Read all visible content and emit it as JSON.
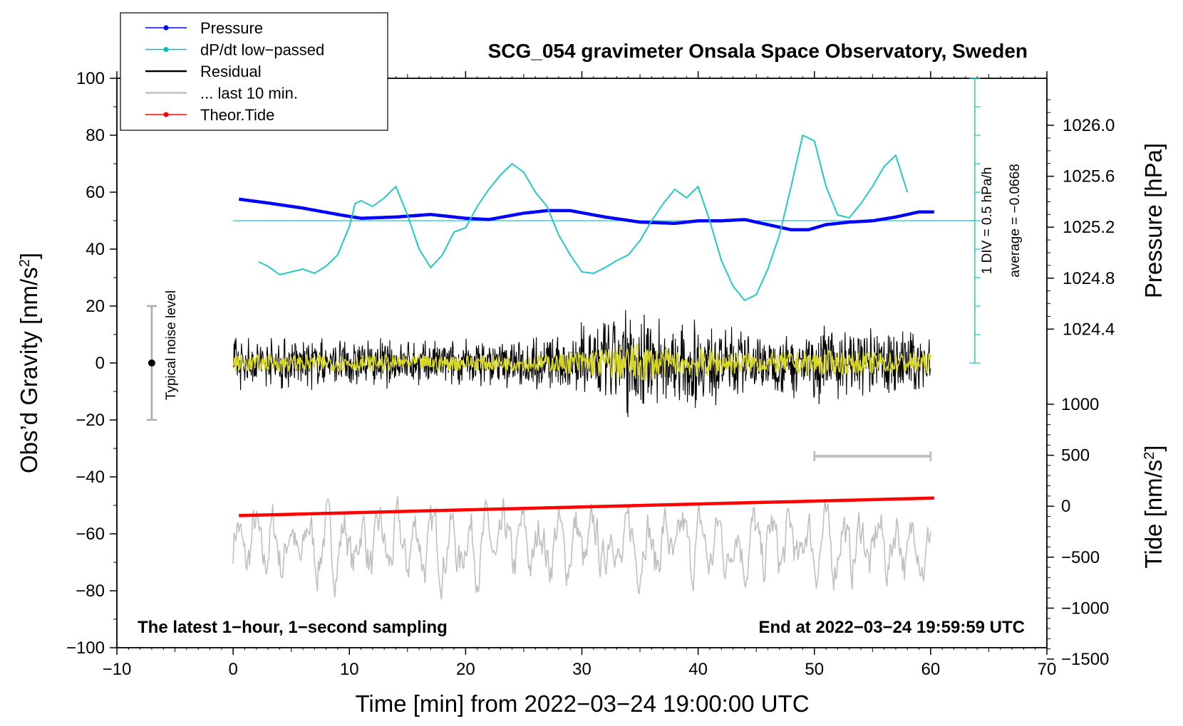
{
  "chart_data": {
    "type": "line",
    "title": "SCG_054 gravimeter Onsala Space Observatory, Sweden",
    "xlabel": "Time [min] from 2022−03−24 19:00:00 UTC",
    "ylabel_left_main": "Obs’d Gravity [nm/s",
    "ylabel_left_sup": "2",
    "ylabel_left_end": "]",
    "ylabel_right_pressure": "Pressure [hPa]",
    "ylabel_right_tide_main": "Tide [nm/s",
    "ylabel_right_tide_sup": "2",
    "ylabel_right_tide_end": "]",
    "xlim": [
      -10,
      70
    ],
    "ylim": [
      -100,
      100
    ],
    "x_ticks": [
      "−10",
      "0",
      "10",
      "20",
      "30",
      "40",
      "50",
      "60",
      "70"
    ],
    "y_ticks": [
      "−100",
      "−80",
      "−60",
      "−40",
      "−20",
      "0",
      "20",
      "40",
      "60",
      "80",
      "100"
    ],
    "pressure_ticks": [
      "1024.4",
      "1024.8",
      "1025.2",
      "1025.6",
      "1026.0"
    ],
    "tide_ticks": [
      "−1500",
      "−1000",
      "−500",
      "0",
      "500",
      "1000"
    ],
    "legend": [
      {
        "label": "Pressure",
        "color": "#0000ff",
        "marker": true
      },
      {
        "label": "dP/dt low−passed",
        "color": "#00c0c0",
        "marker": true
      },
      {
        "label": "Residual",
        "color": "#000000",
        "marker": false
      },
      {
        "label": "... last 10 min.",
        "color": "#bfbfbf",
        "marker": false
      },
      {
        "label": "Theor.Tide",
        "color": "#ff0000",
        "marker": true
      }
    ],
    "colors": {
      "pressure": "#0000ff",
      "dpdt": "#22c8c8",
      "residual": "#000000",
      "residual_smooth": "#d8d820",
      "last10": "#c0c0c0",
      "tide": "#ff0000",
      "noise_bar": "#aaaaaa"
    },
    "footer_left": "The latest 1−hour, 1−second sampling",
    "footer_right": "End at 2022−03−24 19:59:59 UTC",
    "noise_label": "Typical noise level",
    "noise_bar": {
      "x": -7,
      "ymin": -20,
      "ymax": 20,
      "center": 0
    },
    "last10_span_min": [
      50,
      60
    ],
    "dpdt_annotation_1": "1 DIV = 0.5 hPa/h",
    "dpdt_annotation_2": "average = −0.0668",
    "dpdt_zero_level_gravity": 50,
    "pressure_series": {
      "x": [
        0.5,
        3,
        6,
        9,
        11,
        14,
        17,
        20,
        22,
        25,
        27,
        29,
        32,
        35,
        38,
        40,
        42,
        44,
        46,
        48,
        49.5,
        51,
        53,
        55,
        57,
        59,
        60.3
      ],
      "y": [
        1025.42,
        1025.39,
        1025.35,
        1025.3,
        1025.27,
        1025.28,
        1025.3,
        1025.27,
        1025.26,
        1025.31,
        1025.33,
        1025.33,
        1025.28,
        1025.24,
        1025.23,
        1025.25,
        1025.25,
        1025.26,
        1025.22,
        1025.18,
        1025.18,
        1025.22,
        1025.24,
        1025.25,
        1025.28,
        1025.32,
        1025.32
      ]
    },
    "dpdt_series": {
      "x": [
        2.2,
        3,
        4,
        5,
        6,
        7,
        8,
        9,
        10,
        10.5,
        11,
        12,
        13,
        14,
        15,
        16,
        17,
        18,
        19,
        20,
        21,
        22,
        23,
        24,
        25,
        26,
        27,
        28,
        29,
        30,
        31,
        32,
        33,
        34,
        35,
        36,
        37,
        38,
        39,
        40,
        41,
        42,
        43,
        44,
        45,
        46,
        47,
        48,
        49,
        50,
        51,
        52,
        53,
        54,
        55,
        56,
        57,
        58
      ],
      "y": [
        35.5,
        34,
        31,
        32,
        33,
        31.5,
        34,
        38,
        48,
        56,
        57,
        55,
        58,
        62,
        52,
        40,
        33.5,
        38,
        46,
        47.5,
        55,
        61,
        66,
        70,
        67,
        60,
        55,
        45,
        38,
        32,
        31.5,
        33.5,
        36,
        38,
        43,
        50,
        56,
        61,
        58,
        62,
        50,
        36,
        27,
        22,
        24,
        33,
        45,
        62,
        80,
        78,
        62,
        52,
        51,
        56,
        62,
        69,
        73,
        60
      ]
    },
    "residual_envelope": {
      "x": [
        0,
        5,
        10,
        15,
        20,
        25,
        28,
        30,
        32,
        34,
        35,
        36,
        38,
        40,
        42,
        45,
        48,
        50,
        52,
        55,
        58,
        60
      ],
      "amp": [
        10,
        10,
        10,
        9,
        9,
        10,
        11,
        16,
        18,
        22,
        24,
        20,
        14,
        17,
        15,
        11,
        13,
        15,
        14,
        13,
        13,
        12
      ]
    },
    "last10_series": {
      "x_start": 0,
      "x_end": 60,
      "center_gravity": -64,
      "amplitude_gravity": 12
    },
    "tide_series": {
      "x": [
        0.5,
        60.3
      ],
      "y": [
        -92,
        80
      ]
    }
  }
}
